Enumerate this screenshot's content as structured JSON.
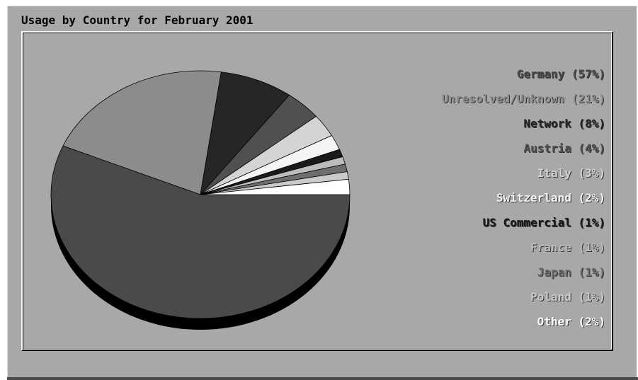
{
  "chart_data": {
    "type": "pie",
    "title": "Usage by Country for February 2001",
    "slices": [
      {
        "label": "Germany",
        "value": 57,
        "legend": "Germany (57%)",
        "color": "#4a4a4a"
      },
      {
        "label": "Unresolved/Unknown",
        "value": 21,
        "legend": "Unresolved/Unknown (21%)",
        "color": "#8c8c8c"
      },
      {
        "label": "Network",
        "value": 8,
        "legend": "Network (8%)",
        "color": "#262626"
      },
      {
        "label": "Austria",
        "value": 4,
        "legend": "Austria (4%)",
        "color": "#505050"
      },
      {
        "label": "Italy",
        "value": 3,
        "legend": "Italy (3%)",
        "color": "#d4d4d4"
      },
      {
        "label": "Switzerland",
        "value": 2,
        "legend": "Switzerland (2%)",
        "color": "#f4f4f4"
      },
      {
        "label": "US Commercial",
        "value": 1,
        "legend": "US Commercial (1%)",
        "color": "#1a1a1a"
      },
      {
        "label": "France",
        "value": 1,
        "legend": "France (1%)",
        "color": "#bcbcbc"
      },
      {
        "label": "Japan",
        "value": 1,
        "legend": "Japan (1%)",
        "color": "#6e6e6e"
      },
      {
        "label": "Poland",
        "value": 1,
        "legend": "Poland (1%)",
        "color": "#cacaca"
      },
      {
        "label": "Other",
        "value": 2,
        "legend": "Other (2%)",
        "color": "#ffffff"
      }
    ],
    "legend_placement": "right",
    "background_color": "#a8a8a8"
  }
}
